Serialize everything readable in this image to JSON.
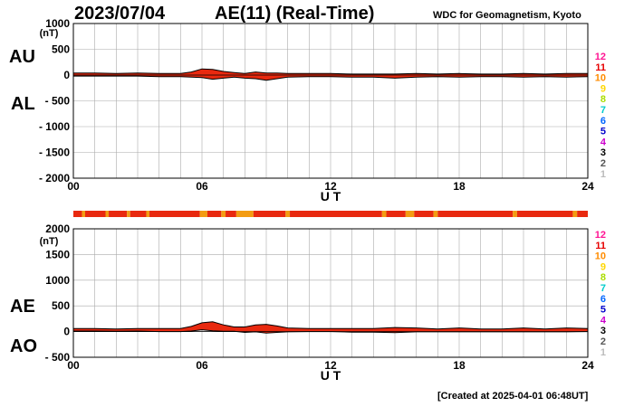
{
  "header": {
    "date": "2023/07/04",
    "title": "AE(11) (Real-Time)",
    "source": "WDC for Geomagnetism, Kyoto"
  },
  "footer": {
    "created": "[Created at 2025-04-01 06:48UT]"
  },
  "color_scale": {
    "labels": [
      "12",
      "11",
      "10",
      "9",
      "8",
      "7",
      "6",
      "5",
      "4",
      "3",
      "2",
      "1"
    ],
    "colors": [
      "#ff1493",
      "#e60000",
      "#ff8c00",
      "#ffd700",
      "#aadd00",
      "#00cccc",
      "#0066ff",
      "#0000cc",
      "#cc00cc",
      "#000000",
      "#555555",
      "#bbbbbb"
    ]
  },
  "chart_data": [
    {
      "type": "area",
      "panel": "AU/AL",
      "series_labels": [
        "AU",
        "AL"
      ],
      "ylabel": "(nT)",
      "xlabel": "U T",
      "ylim": [
        -2000,
        1000
      ],
      "xlim": [
        0,
        24
      ],
      "yticks": [
        "1000",
        "500",
        "0",
        "- 500",
        "- 1000",
        "- 1500",
        "- 2000"
      ],
      "ytick_values": [
        1000,
        500,
        0,
        -500,
        -1000,
        -1500,
        -2000
      ],
      "xticks": [
        "00",
        "06",
        "12",
        "18",
        "24"
      ],
      "xtick_values": [
        0,
        6,
        12,
        18,
        24
      ],
      "grid": true,
      "x": [
        0,
        1,
        2,
        3,
        4,
        5,
        5.5,
        6,
        6.5,
        7,
        7.5,
        8,
        8.5,
        9,
        9.5,
        10,
        11,
        12,
        13,
        14,
        15,
        16,
        17,
        18,
        19,
        20,
        21,
        22,
        23,
        24
      ],
      "series": [
        {
          "name": "AU",
          "values": [
            40,
            40,
            30,
            40,
            30,
            30,
            60,
            120,
            110,
            70,
            50,
            30,
            60,
            40,
            40,
            30,
            30,
            30,
            20,
            20,
            20,
            30,
            20,
            30,
            20,
            20,
            30,
            20,
            30,
            30
          ]
        },
        {
          "name": "AL",
          "values": [
            -20,
            -20,
            -20,
            -20,
            -30,
            -30,
            -40,
            -50,
            -80,
            -60,
            -40,
            -60,
            -70,
            -100,
            -70,
            -40,
            -30,
            -30,
            -40,
            -40,
            -60,
            -40,
            -30,
            -40,
            -30,
            -30,
            -40,
            -30,
            -40,
            -30
          ]
        }
      ]
    },
    {
      "type": "area",
      "panel": "AE/AO",
      "series_labels": [
        "AE",
        "AO"
      ],
      "ylabel": "(nT)",
      "xlabel": "U T",
      "ylim": [
        -500,
        2000
      ],
      "xlim": [
        0,
        24
      ],
      "yticks": [
        "2000",
        "1500",
        "1000",
        "500",
        "0",
        "- 500"
      ],
      "ytick_values": [
        2000,
        1500,
        1000,
        500,
        0,
        -500
      ],
      "xticks": [
        "00",
        "06",
        "12",
        "18",
        "24"
      ],
      "xtick_values": [
        0,
        6,
        12,
        18,
        24
      ],
      "grid": true,
      "x": [
        0,
        1,
        2,
        3,
        4,
        5,
        5.5,
        6,
        6.5,
        7,
        7.5,
        8,
        8.5,
        9,
        9.5,
        10,
        11,
        12,
        13,
        14,
        15,
        16,
        17,
        18,
        19,
        20,
        21,
        22,
        23,
        24
      ],
      "series": [
        {
          "name": "AE",
          "values": [
            60,
            60,
            50,
            60,
            60,
            60,
            100,
            170,
            190,
            130,
            90,
            90,
            130,
            140,
            110,
            70,
            60,
            60,
            60,
            60,
            80,
            70,
            50,
            70,
            50,
            50,
            70,
            50,
            70,
            60
          ]
        },
        {
          "name": "AO",
          "values": [
            10,
            10,
            5,
            10,
            0,
            0,
            10,
            35,
            15,
            5,
            5,
            -15,
            -5,
            -30,
            -15,
            -5,
            0,
            0,
            -10,
            -10,
            -20,
            -5,
            -5,
            -5,
            -5,
            -5,
            -5,
            -5,
            -5,
            0
          ]
        }
      ]
    }
  ],
  "station_bar": {
    "hours": [
      0,
      24
    ],
    "segments": [
      {
        "start": 0,
        "end": 0.4,
        "level": 11
      },
      {
        "start": 0.4,
        "end": 0.55,
        "level": 10
      },
      {
        "start": 0.55,
        "end": 1.5,
        "level": 11
      },
      {
        "start": 1.5,
        "end": 1.65,
        "level": 10
      },
      {
        "start": 1.65,
        "end": 2.5,
        "level": 11
      },
      {
        "start": 2.5,
        "end": 2.65,
        "level": 10
      },
      {
        "start": 2.65,
        "end": 3.4,
        "level": 11
      },
      {
        "start": 3.4,
        "end": 3.55,
        "level": 10
      },
      {
        "start": 3.55,
        "end": 5.9,
        "level": 11
      },
      {
        "start": 5.9,
        "end": 6.25,
        "level": 10
      },
      {
        "start": 6.25,
        "end": 6.9,
        "level": 11
      },
      {
        "start": 6.9,
        "end": 7.1,
        "level": 10
      },
      {
        "start": 7.1,
        "end": 7.6,
        "level": 11
      },
      {
        "start": 7.6,
        "end": 8.4,
        "level": 10
      },
      {
        "start": 8.4,
        "end": 9.9,
        "level": 11
      },
      {
        "start": 9.9,
        "end": 10.1,
        "level": 10
      },
      {
        "start": 10.1,
        "end": 14.4,
        "level": 11
      },
      {
        "start": 14.4,
        "end": 14.6,
        "level": 10
      },
      {
        "start": 14.6,
        "end": 15.5,
        "level": 11
      },
      {
        "start": 15.5,
        "end": 15.9,
        "level": 10
      },
      {
        "start": 15.9,
        "end": 16.8,
        "level": 11
      },
      {
        "start": 16.8,
        "end": 17.0,
        "level": 10
      },
      {
        "start": 17.0,
        "end": 20.5,
        "level": 11
      },
      {
        "start": 20.5,
        "end": 20.7,
        "level": 10
      },
      {
        "start": 20.7,
        "end": 23.3,
        "level": 11
      },
      {
        "start": 23.3,
        "end": 23.5,
        "level": 10
      },
      {
        "start": 23.5,
        "end": 24,
        "level": 11
      }
    ]
  },
  "colors": {
    "fill_main": "#e8290f",
    "fill_alt": "#f39c12",
    "grid": "#aaaaaa",
    "axis": "#000000",
    "line": "#000000"
  }
}
